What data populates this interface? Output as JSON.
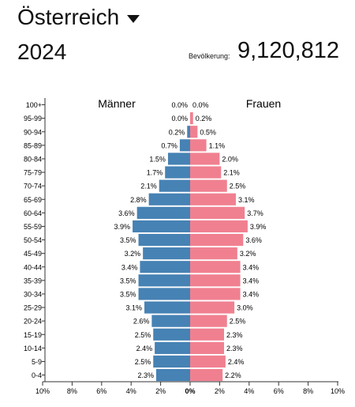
{
  "header": {
    "country": "Österreich",
    "year": "2024",
    "population_label": "Bevölkerung:",
    "population_value": "9,120,812",
    "selector_icon": "caret-down-icon"
  },
  "chart_data": {
    "type": "bar",
    "orientation": "horizontal",
    "subtype": "population-pyramid",
    "categories": [
      "0-4",
      "5-9",
      "10-14",
      "15-19",
      "20-24",
      "25-29",
      "30-34",
      "35-39",
      "40-44",
      "45-49",
      "50-54",
      "55-59",
      "60-64",
      "65-69",
      "70-74",
      "75-79",
      "80-84",
      "85-89",
      "90-94",
      "95-99",
      "100+"
    ],
    "series": [
      {
        "name": "Männer",
        "color": "#4682b4",
        "values": [
          2.3,
          2.5,
          2.4,
          2.5,
          2.6,
          3.1,
          3.5,
          3.5,
          3.4,
          3.2,
          3.5,
          3.9,
          3.6,
          2.8,
          2.1,
          1.7,
          1.5,
          0.7,
          0.2,
          0.0,
          0.0
        ],
        "labels": [
          "2.3%",
          "2.5%",
          "2.4%",
          "2.5%",
          "2.6%",
          "3.1%",
          "3.5%",
          "3.5%",
          "3.4%",
          "3.2%",
          "3.5%",
          "3.9%",
          "3.6%",
          "2.8%",
          "2.1%",
          "1.7%",
          "1.5%",
          "0.7%",
          "0.2%",
          "0.0%",
          "0.0%"
        ]
      },
      {
        "name": "Frauen",
        "color": "#f08090",
        "values": [
          2.2,
          2.4,
          2.3,
          2.3,
          2.5,
          3.0,
          3.4,
          3.4,
          3.4,
          3.2,
          3.6,
          3.9,
          3.7,
          3.1,
          2.5,
          2.1,
          2.0,
          1.1,
          0.5,
          0.2,
          0.0
        ],
        "labels": [
          "2.2%",
          "2.4%",
          "2.3%",
          "2.3%",
          "2.5%",
          "3.0%",
          "3.4%",
          "3.4%",
          "3.4%",
          "3.2%",
          "3.6%",
          "3.9%",
          "3.7%",
          "3.1%",
          "2.5%",
          "2.1%",
          "2.0%",
          "1.1%",
          "0.5%",
          "0.2%",
          "0.0%"
        ]
      }
    ],
    "xlim": [
      -10,
      10
    ],
    "xticks": [
      -10,
      -8,
      -6,
      -4,
      -2,
      0,
      2,
      4,
      6,
      8,
      10
    ],
    "xtick_labels": [
      "10%",
      "8%",
      "6%",
      "4%",
      "2%",
      "0%",
      "2%",
      "4%",
      "6%",
      "8%",
      "10%"
    ],
    "grid": false,
    "legend": "top, series names printed above each side"
  }
}
